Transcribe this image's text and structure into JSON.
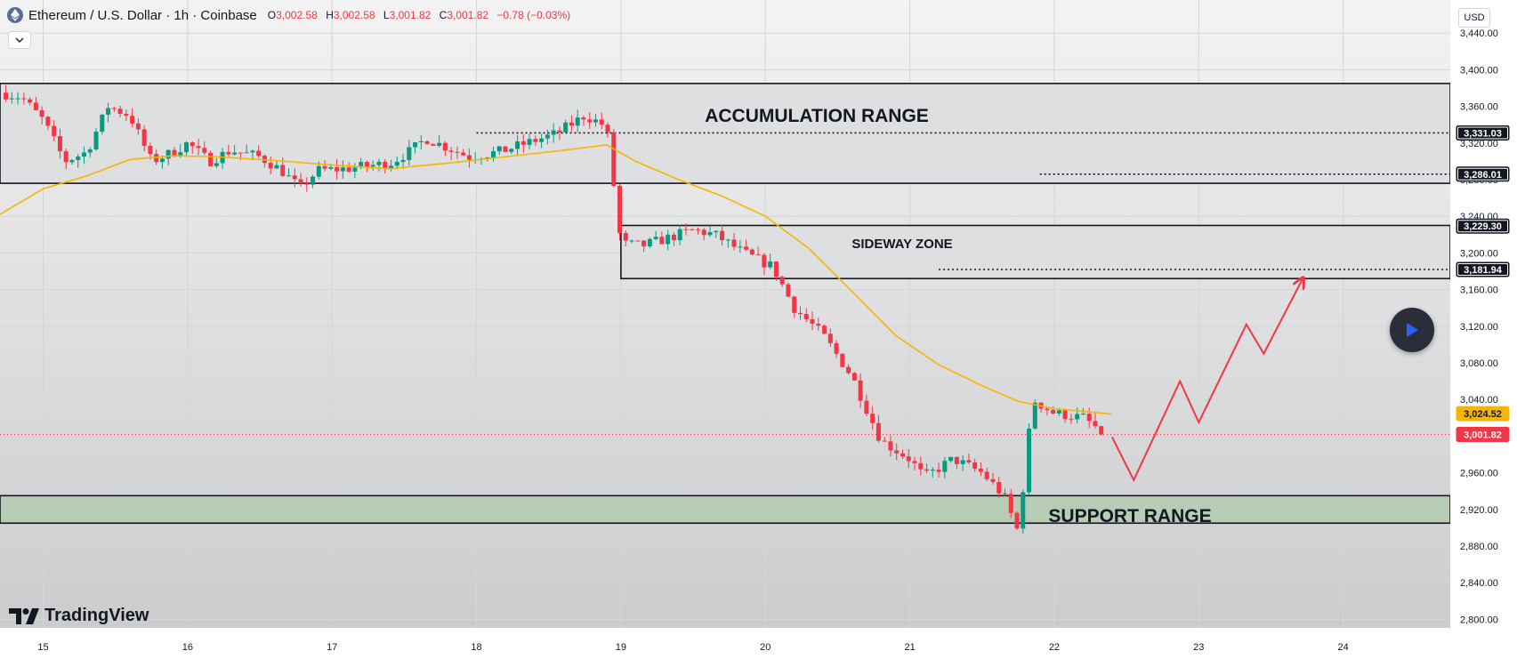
{
  "header": {
    "symbol_title": "Ethereum / U.S. Dollar · 1h · Coinbase",
    "open_label": "O",
    "open": "3,002.58",
    "high_label": "H",
    "high": "3,002.58",
    "low_label": "L",
    "low": "3,001.82",
    "close_label": "C",
    "close": "3,001.82",
    "change": "−0.78 (−0.03%)"
  },
  "currency": "USD",
  "brand": "TradingView",
  "colors": {
    "up": "#089981",
    "down": "#f23645",
    "ma": "#f7b500",
    "projection": "#f23645",
    "zone_fill": "#dedfe1",
    "support_fill": "#b7ccb5",
    "background_top": "#f3f3f4",
    "background_bottom": "#c9cacc"
  },
  "chart_data": {
    "type": "candlestick",
    "ylim": [
      2780,
      3460
    ],
    "y_ticks": [
      2800,
      2840,
      2880,
      2920,
      2960,
      3000,
      3040,
      3080,
      3120,
      3160,
      3200,
      3240,
      3280,
      3320,
      3360,
      3400,
      3440
    ],
    "y_tick_labels": [
      "2,800.00",
      "2,840.00",
      "2,880.00",
      "2,920.00",
      "2,960.00",
      "3,000.00",
      "3,040.00",
      "3,080.00",
      "3,120.00",
      "3,160.00",
      "3,200.00",
      "3,240.00",
      "3,280.00",
      "3,320.00",
      "3,360.00",
      "3,400.00",
      "3,440.00"
    ],
    "x_range": [
      14.7,
      24.9
    ],
    "x_ticks": [
      15,
      16,
      17,
      18,
      19,
      20,
      21,
      22,
      23,
      24
    ],
    "x_tick_labels": [
      "15",
      "16",
      "17",
      "18",
      "19",
      "20",
      "21",
      "22",
      "23",
      "24"
    ],
    "anchors": [
      [
        14.7,
        3375
      ],
      [
        14.85,
        3370
      ],
      [
        15.0,
        3345
      ],
      [
        15.15,
        3300
      ],
      [
        15.3,
        3310
      ],
      [
        15.45,
        3360
      ],
      [
        15.6,
        3350
      ],
      [
        15.75,
        3300
      ],
      [
        15.9,
        3310
      ],
      [
        16.0,
        3320
      ],
      [
        16.15,
        3300
      ],
      [
        16.3,
        3312
      ],
      [
        16.5,
        3305
      ],
      [
        16.65,
        3290
      ],
      [
        16.78,
        3270
      ],
      [
        16.9,
        3290
      ],
      [
        17.1,
        3292
      ],
      [
        17.4,
        3298
      ],
      [
        17.55,
        3312
      ],
      [
        17.65,
        3325
      ],
      [
        17.8,
        3315
      ],
      [
        17.95,
        3305
      ],
      [
        18.15,
        3310
      ],
      [
        18.35,
        3320
      ],
      [
        18.55,
        3330
      ],
      [
        18.75,
        3350
      ],
      [
        18.9,
        3338
      ],
      [
        19.0,
        3210
      ],
      [
        19.15,
        3208
      ],
      [
        19.3,
        3215
      ],
      [
        19.5,
        3225
      ],
      [
        19.65,
        3220
      ],
      [
        19.85,
        3200
      ],
      [
        20.05,
        3185
      ],
      [
        20.2,
        3140
      ],
      [
        20.4,
        3110
      ],
      [
        20.6,
        3065
      ],
      [
        20.8,
        2995
      ],
      [
        21.0,
        2975
      ],
      [
        21.1,
        2955
      ],
      [
        21.3,
        2975
      ],
      [
        21.5,
        2960
      ],
      [
        21.65,
        2935
      ],
      [
        21.75,
        2895
      ],
      [
        21.85,
        3040
      ],
      [
        22.0,
        3025
      ],
      [
        22.2,
        3020
      ],
      [
        22.35,
        3002
      ]
    ],
    "moving_average": [
      [
        14.7,
        3242
      ],
      [
        15.0,
        3270
      ],
      [
        15.3,
        3284
      ],
      [
        15.6,
        3302
      ],
      [
        15.9,
        3306
      ],
      [
        16.2,
        3305
      ],
      [
        16.6,
        3301
      ],
      [
        17.0,
        3296
      ],
      [
        17.4,
        3292
      ],
      [
        17.8,
        3298
      ],
      [
        18.2,
        3305
      ],
      [
        18.6,
        3312
      ],
      [
        18.9,
        3318
      ],
      [
        19.1,
        3300
      ],
      [
        19.4,
        3280
      ],
      [
        19.7,
        3262
      ],
      [
        20.0,
        3240
      ],
      [
        20.3,
        3205
      ],
      [
        20.6,
        3158
      ],
      [
        20.9,
        3110
      ],
      [
        21.2,
        3078
      ],
      [
        21.5,
        3055
      ],
      [
        21.75,
        3038
      ],
      [
        22.0,
        3030
      ],
      [
        22.2,
        3027
      ],
      [
        22.4,
        3024
      ]
    ],
    "zones": [
      {
        "name": "ACCUMULATION RANGE",
        "y_low": 3276,
        "y_high": 3385,
        "x_start": 14.7,
        "fill": "zone_fill"
      },
      {
        "name": "SIDEWAY ZONE",
        "y_low": 3172,
        "y_high": 3230,
        "x_start": 19.0,
        "fill": "zone_fill"
      },
      {
        "name": "SUPPORT RANGE",
        "y_low": 2905,
        "y_high": 2935,
        "x_start": 14.7,
        "fill": "support_fill"
      }
    ],
    "dotted_levels": [
      {
        "value": 3331.03,
        "x_start": 18.0
      },
      {
        "value": 3286.01,
        "x_start": 21.9
      },
      {
        "value": 3181.94,
        "x_start": 21.2
      }
    ],
    "price_labels": [
      {
        "value": 3331.03,
        "text": "3,331.03",
        "style": "dark"
      },
      {
        "value": 3286.01,
        "text": "3,286.01",
        "style": "dark"
      },
      {
        "value": 3229.3,
        "text": "3,229.30",
        "style": "dark"
      },
      {
        "value": 3181.94,
        "text": "3,181.94",
        "style": "dark"
      },
      {
        "value": 3024.52,
        "text": "3,024.52",
        "style": "ma"
      },
      {
        "value": 3001.82,
        "text": "3,001.82",
        "style": "down"
      }
    ],
    "last_price": 3001.82,
    "projection": [
      [
        22.4,
        2999
      ],
      [
        22.55,
        2952
      ],
      [
        22.87,
        3060
      ],
      [
        23.0,
        3015
      ],
      [
        23.33,
        3122
      ],
      [
        23.45,
        3090
      ],
      [
        23.72,
        3172
      ]
    ]
  }
}
